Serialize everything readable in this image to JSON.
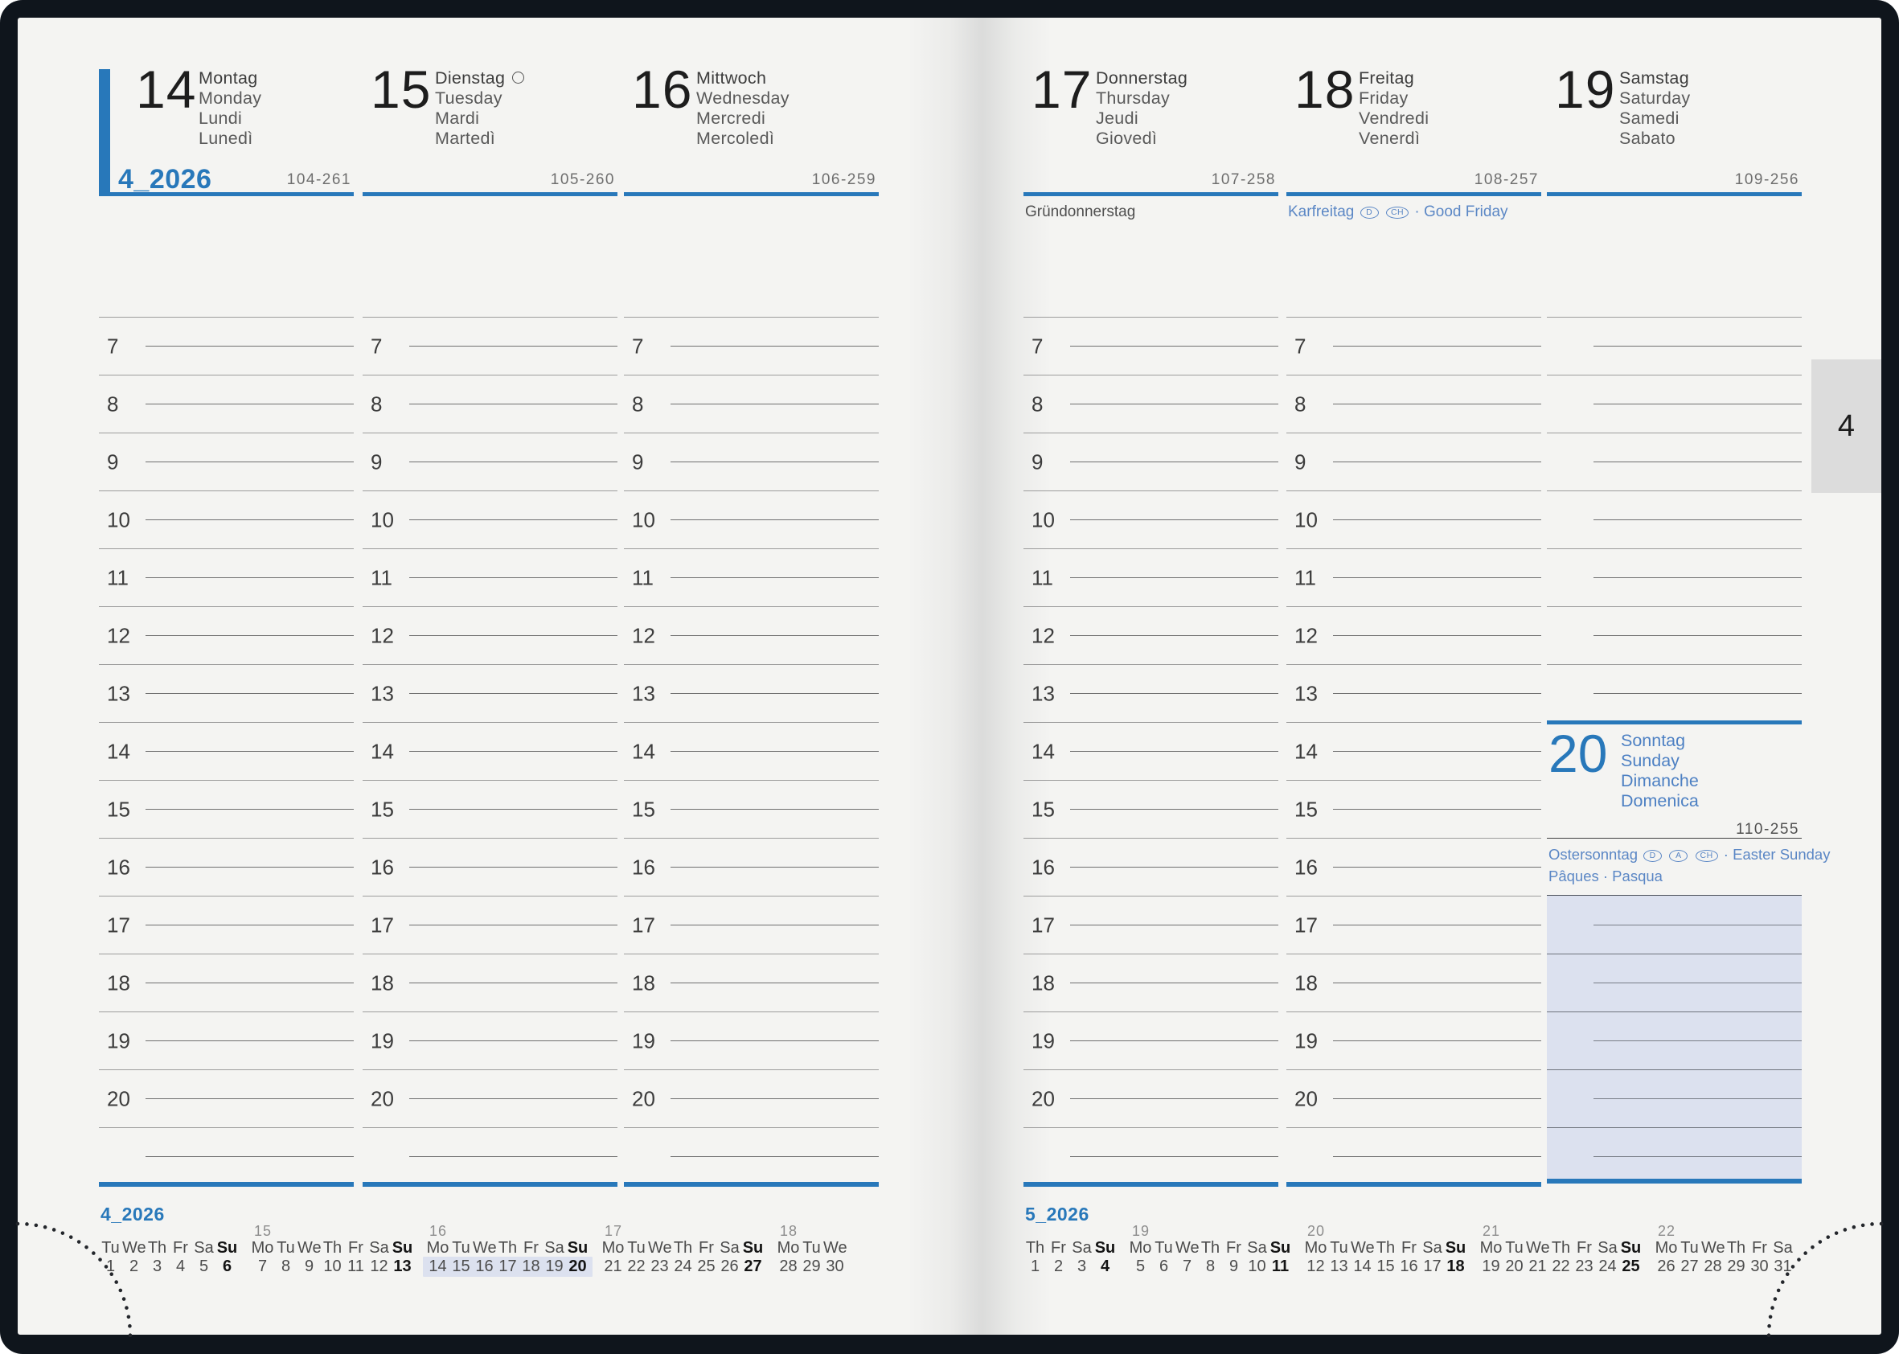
{
  "colors": {
    "accent_blue": "#2878ba",
    "holiday_blue": "#5b87c5",
    "page_background": "#f4f4f2",
    "cover_dark": "#0f151c",
    "week_highlight": "#dce1ef",
    "tab_gray": "#dcdcdc"
  },
  "tab": {
    "label": "4"
  },
  "left_page": {
    "month_label": "4_2026"
  },
  "hours": [
    "7",
    "8",
    "9",
    "10",
    "11",
    "12",
    "13",
    "14",
    "15",
    "16",
    "17",
    "18",
    "19",
    "20"
  ],
  "days": [
    {
      "number": "14",
      "names": [
        "Montag",
        "Monday",
        "Lundi",
        "Lunedì"
      ],
      "page_ref": "104-261"
    },
    {
      "number": "15",
      "names": [
        "Dienstag",
        "Tuesday",
        "Mardi",
        "Martedì"
      ],
      "page_ref": "105-260",
      "moon": "full-moon"
    },
    {
      "number": "16",
      "names": [
        "Mittwoch",
        "Wednesday",
        "Mercredi",
        "Mercoledì"
      ],
      "page_ref": "106-259"
    },
    {
      "number": "17",
      "names": [
        "Donnerstag",
        "Thursday",
        "Jeudi",
        "Giovedì"
      ],
      "page_ref": "107-258",
      "holiday": {
        "label": "Gründonnerstag",
        "badges": [],
        "suffix": ""
      }
    },
    {
      "number": "18",
      "names": [
        "Freitag",
        "Friday",
        "Vendredi",
        "Venerdì"
      ],
      "page_ref": "108-257",
      "holiday": {
        "label": "Karfreitag",
        "badges": [
          "D",
          "CH"
        ],
        "suffix": "· Good Friday"
      }
    },
    {
      "number": "19",
      "names": [
        "Samstag",
        "Saturday",
        "Samedi",
        "Sabato"
      ],
      "page_ref": "109-256"
    },
    {
      "number": "20",
      "names": [
        "Sonntag",
        "Sunday",
        "Dimanche",
        "Domenica"
      ],
      "page_ref": "110-255",
      "holiday": {
        "label": "Ostersonntag",
        "badges": [
          "D",
          "A",
          "CH"
        ],
        "suffix": "· Easter Sunday"
      },
      "holiday_line2": "Pâques · Pasqua"
    }
  ],
  "mini_calendars": [
    {
      "title": "4_2026",
      "groups": [
        {
          "week": "",
          "headers": [
            "Tu",
            "We",
            "Th",
            "Fr",
            "Sa",
            "Su"
          ],
          "numbers": [
            "1",
            "2",
            "3",
            "4",
            "5",
            "6"
          ],
          "bold_last": true,
          "highlight": false
        },
        {
          "week": "15",
          "headers": [
            "Mo",
            "Tu",
            "We",
            "Th",
            "Fr",
            "Sa",
            "Su"
          ],
          "numbers": [
            "7",
            "8",
            "9",
            "10",
            "11",
            "12",
            "13"
          ],
          "bold_last": true,
          "highlight": false
        },
        {
          "week": "16",
          "headers": [
            "Mo",
            "Tu",
            "We",
            "Th",
            "Fr",
            "Sa",
            "Su"
          ],
          "numbers": [
            "14",
            "15",
            "16",
            "17",
            "18",
            "19",
            "20"
          ],
          "bold_last": true,
          "highlight": true
        },
        {
          "week": "17",
          "headers": [
            "Mo",
            "Tu",
            "We",
            "Th",
            "Fr",
            "Sa",
            "Su"
          ],
          "numbers": [
            "21",
            "22",
            "23",
            "24",
            "25",
            "26",
            "27"
          ],
          "bold_last": true,
          "highlight": false
        },
        {
          "week": "18",
          "headers": [
            "Mo",
            "Tu",
            "We"
          ],
          "numbers": [
            "28",
            "29",
            "30"
          ],
          "bold_last": false,
          "highlight": false
        }
      ]
    },
    {
      "title": "5_2026",
      "groups": [
        {
          "week": "",
          "headers": [
            "Th",
            "Fr",
            "Sa",
            "Su"
          ],
          "numbers": [
            "1",
            "2",
            "3",
            "4"
          ],
          "bold_last": true,
          "highlight": false
        },
        {
          "week": "19",
          "headers": [
            "Mo",
            "Tu",
            "We",
            "Th",
            "Fr",
            "Sa",
            "Su"
          ],
          "numbers": [
            "5",
            "6",
            "7",
            "8",
            "9",
            "10",
            "11"
          ],
          "bold_last": true,
          "highlight": false
        },
        {
          "week": "20",
          "headers": [
            "Mo",
            "Tu",
            "We",
            "Th",
            "Fr",
            "Sa",
            "Su"
          ],
          "numbers": [
            "12",
            "13",
            "14",
            "15",
            "16",
            "17",
            "18"
          ],
          "bold_last": true,
          "highlight": false
        },
        {
          "week": "21",
          "headers": [
            "Mo",
            "Tu",
            "We",
            "Th",
            "Fr",
            "Sa",
            "Su"
          ],
          "numbers": [
            "19",
            "20",
            "21",
            "22",
            "23",
            "24",
            "25"
          ],
          "bold_last": true,
          "highlight": false
        },
        {
          "week": "22",
          "headers": [
            "Mo",
            "Tu",
            "We",
            "Th",
            "Fr",
            "Sa"
          ],
          "numbers": [
            "26",
            "27",
            "28",
            "29",
            "30",
            "31"
          ],
          "bold_last": false,
          "highlight": false
        }
      ]
    }
  ]
}
